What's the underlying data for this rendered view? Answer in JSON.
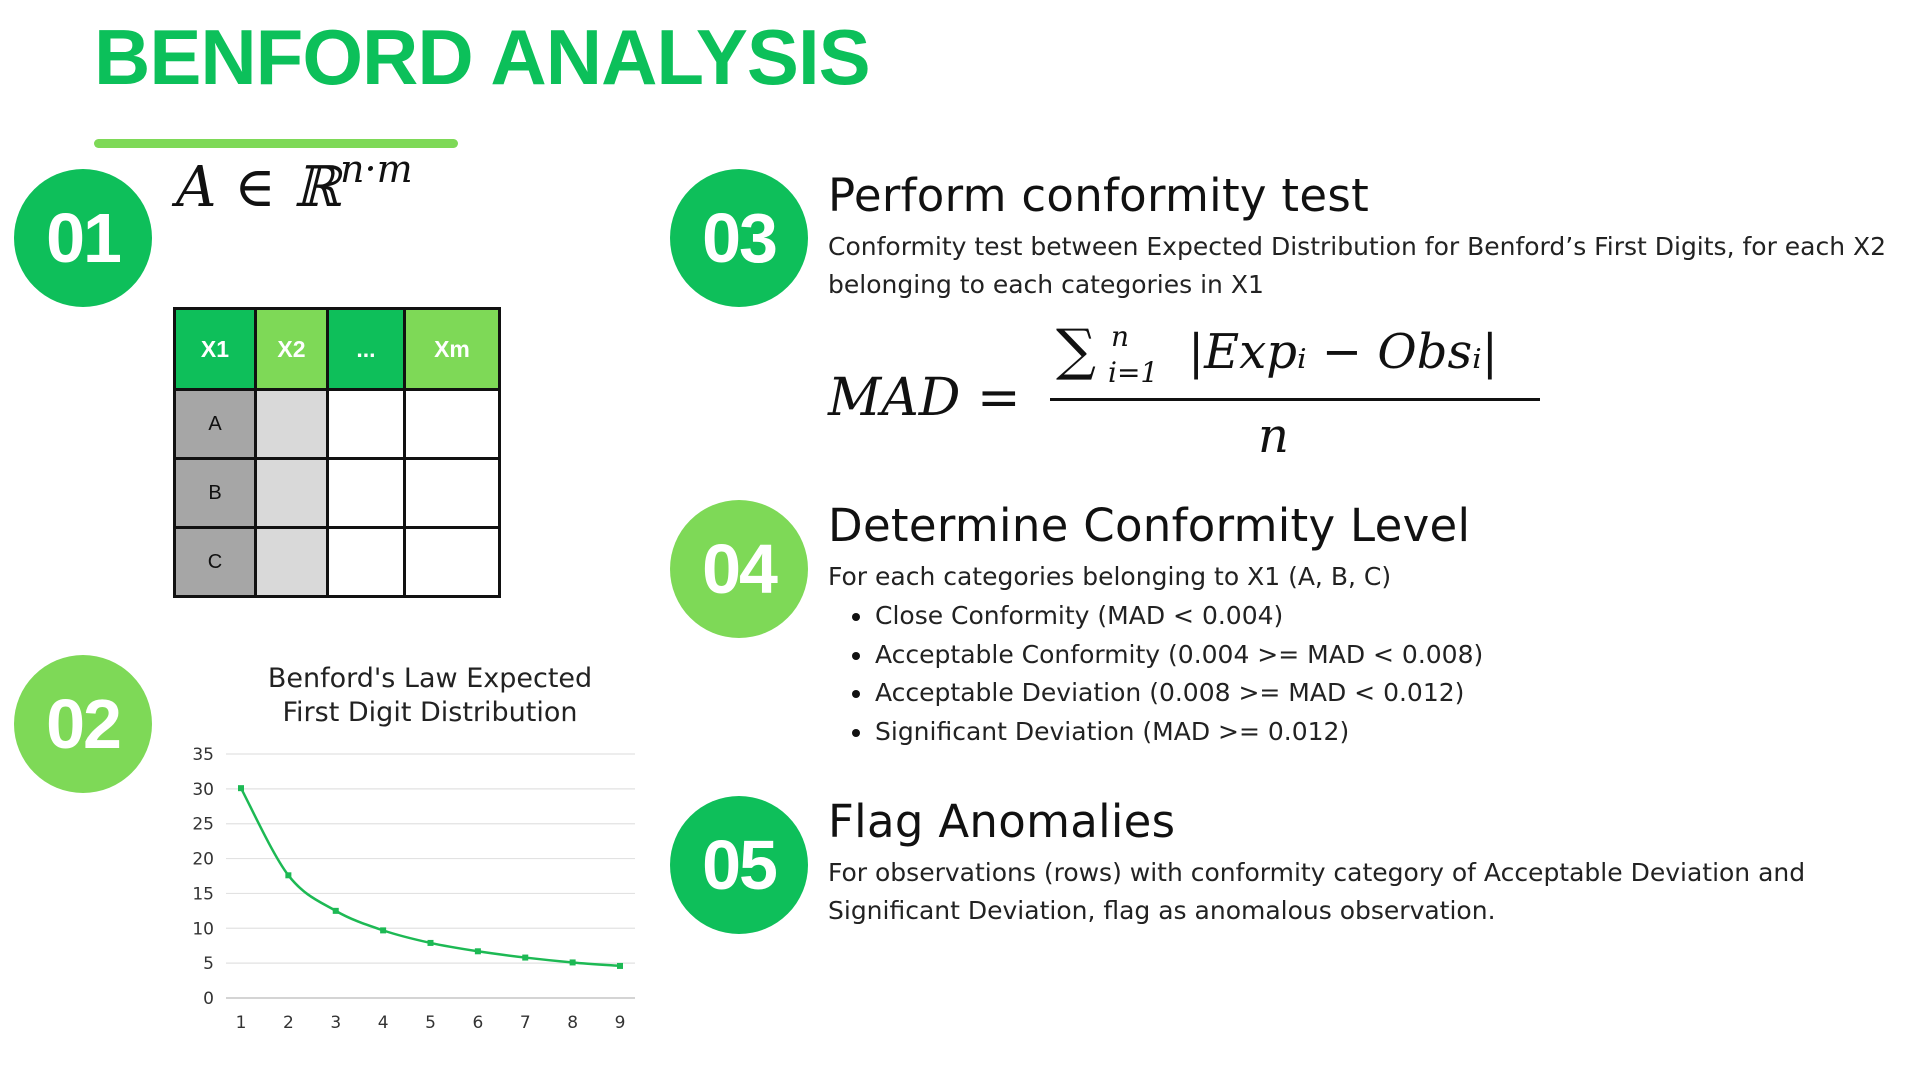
{
  "title": "BENFORD ANALYSIS",
  "steps": [
    {
      "number": "01",
      "formula": {
        "base": "A ∈ ℝ",
        "exp": "n·m"
      }
    },
    {
      "number": "02"
    },
    {
      "number": "03",
      "heading": "Perform conformity test",
      "text": "Conformity test between Expected Distribution for Benford’s First Digits, for each X2 belonging to each categories in X1",
      "formula": {
        "lhs": "MAD =",
        "sum_sym": "∑",
        "sum_top": "n",
        "sum_bottom": "i=1",
        "numerator": "|Expᵢ − Obsᵢ|",
        "denominator": "n"
      }
    },
    {
      "number": "04",
      "heading": "Determine Conformity Level",
      "text": "For each categories belonging to X1 (A, B, C)",
      "bullets": [
        "Close Conformity (MAD < 0.004)",
        "Acceptable Conformity (0.004 >= MAD < 0.008)",
        "Acceptable Deviation (0.008 >= MAD < 0.012)",
        "Significant Deviation (MAD >= 0.012)"
      ]
    },
    {
      "number": "05",
      "heading": "Flag Anomalies",
      "text": "For observations (rows) with conformity category of Acceptable Deviation and Significant Deviation, flag as anomalous observation."
    }
  ],
  "table": {
    "headers": [
      "X1",
      "X2",
      "...",
      "Xm"
    ],
    "rows": [
      "A",
      "B",
      "C"
    ]
  },
  "colors": {
    "green_dark": "#0ebf5a",
    "green_light": "#7ed957",
    "line": "#1db954"
  },
  "chart_data": {
    "type": "line",
    "title": "Benford's Law Expected First Digit Distribution",
    "title_lines": [
      "Benford's Law Expected",
      "First Digit Distribution"
    ],
    "xlabel": "",
    "ylabel": "",
    "categories": [
      "1",
      "2",
      "3",
      "4",
      "5",
      "6",
      "7",
      "8",
      "9"
    ],
    "values": [
      30.1,
      17.6,
      12.5,
      9.7,
      7.9,
      6.7,
      5.8,
      5.1,
      4.6
    ],
    "ylim": [
      0,
      35
    ],
    "yticks": [
      0,
      5,
      10,
      15,
      20,
      25,
      30,
      35
    ],
    "grid": true,
    "legend": "none"
  }
}
